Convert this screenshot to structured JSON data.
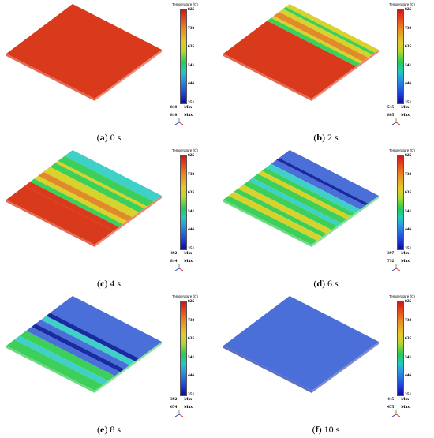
{
  "colorbar": {
    "title": "Temperature (C)",
    "ticks": [
      "825",
      "730",
      "635",
      "541",
      "446",
      "351"
    ],
    "min_label": "Min",
    "max_label": "Max"
  },
  "panels": [
    {
      "label": "(a)",
      "letter": "a",
      "time": "0 s",
      "min": "810",
      "max": "810"
    },
    {
      "label": "(b)",
      "letter": "b",
      "time": "2 s",
      "min": "545",
      "max": "805"
    },
    {
      "label": "(c)",
      "letter": "c",
      "time": "4 s",
      "min": "492",
      "max": "814"
    },
    {
      "label": "(d)",
      "letter": "d",
      "time": "6 s",
      "min": "397",
      "max": "792"
    },
    {
      "label": "(e)",
      "letter": "e",
      "time": "8 s",
      "min": "392",
      "max": "674"
    },
    {
      "label": "(f)",
      "letter": "f",
      "time": "10 s",
      "min": "445",
      "max": "475"
    }
  ],
  "colors": {
    "hot": "#d93a1c",
    "orange": "#e08a2a",
    "yellow": "#d8d22c",
    "green": "#3ccf5a",
    "cyan": "#3fd0c8",
    "blue": "#4a6fd8",
    "darkblue": "#1a2aa0"
  }
}
